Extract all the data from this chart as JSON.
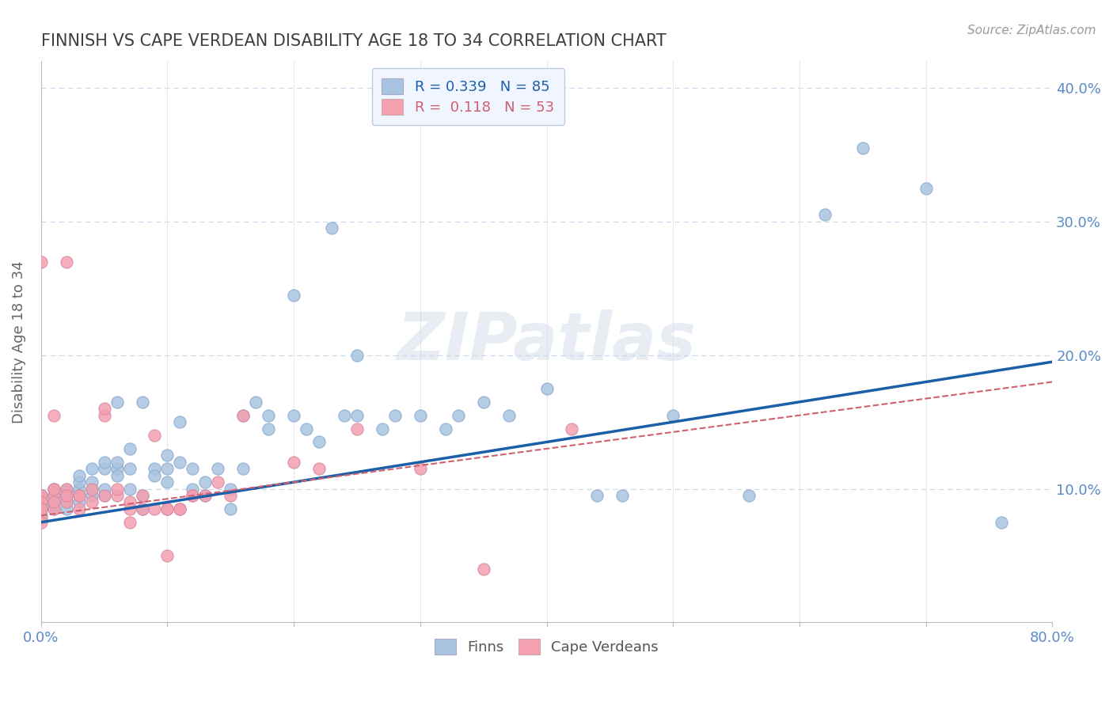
{
  "title": "FINNISH VS CAPE VERDEAN DISABILITY AGE 18 TO 34 CORRELATION CHART",
  "source": "Source: ZipAtlas.com",
  "xlabel": "",
  "ylabel": "Disability Age 18 to 34",
  "xlim": [
    0.0,
    0.8
  ],
  "ylim": [
    0.0,
    0.42
  ],
  "x_ticks": [
    0.0,
    0.1,
    0.2,
    0.3,
    0.4,
    0.5,
    0.6,
    0.7,
    0.8
  ],
  "y_ticks": [
    0.0,
    0.1,
    0.2,
    0.3,
    0.4
  ],
  "finns_R": 0.339,
  "finns_N": 85,
  "cape_R": 0.118,
  "cape_N": 53,
  "finns_color": "#a8c4e0",
  "cape_color": "#f4a0b0",
  "finns_line_color": "#1a5fa8",
  "cape_line_color": "#d06070",
  "watermark": "ZIPatlas",
  "background_color": "#ffffff",
  "grid_color": "#c8d8e8",
  "title_color": "#404040",
  "axis_label_color": "#5a8ac6",
  "legend_box_color": "#f0f5ff",
  "finns_line": [
    0.0,
    0.075,
    0.8,
    0.195
  ],
  "cape_line": [
    0.0,
    0.08,
    0.8,
    0.18
  ],
  "finns_data": [
    [
      0.0,
      0.095
    ],
    [
      0.0,
      0.085
    ],
    [
      0.0,
      0.09
    ],
    [
      0.0,
      0.08
    ],
    [
      0.0,
      0.09
    ],
    [
      0.0,
      0.095
    ],
    [
      0.0,
      0.088
    ],
    [
      0.01,
      0.09
    ],
    [
      0.01,
      0.085
    ],
    [
      0.01,
      0.092
    ],
    [
      0.01,
      0.1
    ],
    [
      0.01,
      0.095
    ],
    [
      0.01,
      0.088
    ],
    [
      0.02,
      0.095
    ],
    [
      0.02,
      0.1
    ],
    [
      0.02,
      0.085
    ],
    [
      0.02,
      0.09
    ],
    [
      0.02,
      0.098
    ],
    [
      0.02,
      0.095
    ],
    [
      0.03,
      0.1
    ],
    [
      0.03,
      0.105
    ],
    [
      0.03,
      0.095
    ],
    [
      0.03,
      0.09
    ],
    [
      0.03,
      0.11
    ],
    [
      0.04,
      0.115
    ],
    [
      0.04,
      0.1
    ],
    [
      0.04,
      0.095
    ],
    [
      0.04,
      0.105
    ],
    [
      0.05,
      0.115
    ],
    [
      0.05,
      0.12
    ],
    [
      0.05,
      0.095
    ],
    [
      0.05,
      0.1
    ],
    [
      0.06,
      0.115
    ],
    [
      0.06,
      0.12
    ],
    [
      0.06,
      0.165
    ],
    [
      0.06,
      0.11
    ],
    [
      0.07,
      0.13
    ],
    [
      0.07,
      0.1
    ],
    [
      0.07,
      0.115
    ],
    [
      0.08,
      0.165
    ],
    [
      0.08,
      0.085
    ],
    [
      0.08,
      0.095
    ],
    [
      0.09,
      0.115
    ],
    [
      0.09,
      0.11
    ],
    [
      0.1,
      0.125
    ],
    [
      0.1,
      0.115
    ],
    [
      0.1,
      0.105
    ],
    [
      0.11,
      0.12
    ],
    [
      0.11,
      0.15
    ],
    [
      0.12,
      0.115
    ],
    [
      0.12,
      0.1
    ],
    [
      0.13,
      0.095
    ],
    [
      0.13,
      0.105
    ],
    [
      0.14,
      0.115
    ],
    [
      0.15,
      0.085
    ],
    [
      0.15,
      0.1
    ],
    [
      0.16,
      0.115
    ],
    [
      0.16,
      0.155
    ],
    [
      0.17,
      0.165
    ],
    [
      0.18,
      0.155
    ],
    [
      0.18,
      0.145
    ],
    [
      0.2,
      0.245
    ],
    [
      0.2,
      0.155
    ],
    [
      0.21,
      0.145
    ],
    [
      0.22,
      0.135
    ],
    [
      0.23,
      0.295
    ],
    [
      0.24,
      0.155
    ],
    [
      0.25,
      0.2
    ],
    [
      0.25,
      0.155
    ],
    [
      0.27,
      0.145
    ],
    [
      0.28,
      0.155
    ],
    [
      0.3,
      0.155
    ],
    [
      0.32,
      0.145
    ],
    [
      0.33,
      0.155
    ],
    [
      0.35,
      0.165
    ],
    [
      0.37,
      0.155
    ],
    [
      0.4,
      0.175
    ],
    [
      0.44,
      0.095
    ],
    [
      0.46,
      0.095
    ],
    [
      0.5,
      0.155
    ],
    [
      0.56,
      0.095
    ],
    [
      0.62,
      0.305
    ],
    [
      0.65,
      0.355
    ],
    [
      0.7,
      0.325
    ],
    [
      0.76,
      0.075
    ]
  ],
  "cape_data": [
    [
      0.0,
      0.095
    ],
    [
      0.0,
      0.09
    ],
    [
      0.0,
      0.085
    ],
    [
      0.0,
      0.078
    ],
    [
      0.0,
      0.095
    ],
    [
      0.0,
      0.09
    ],
    [
      0.0,
      0.085
    ],
    [
      0.0,
      0.27
    ],
    [
      0.0,
      0.075
    ],
    [
      0.01,
      0.1
    ],
    [
      0.01,
      0.095
    ],
    [
      0.01,
      0.085
    ],
    [
      0.01,
      0.1
    ],
    [
      0.01,
      0.09
    ],
    [
      0.01,
      0.155
    ],
    [
      0.02,
      0.09
    ],
    [
      0.02,
      0.1
    ],
    [
      0.02,
      0.095
    ],
    [
      0.02,
      0.27
    ],
    [
      0.03,
      0.095
    ],
    [
      0.03,
      0.095
    ],
    [
      0.03,
      0.085
    ],
    [
      0.04,
      0.09
    ],
    [
      0.04,
      0.1
    ],
    [
      0.05,
      0.155
    ],
    [
      0.05,
      0.16
    ],
    [
      0.05,
      0.095
    ],
    [
      0.06,
      0.095
    ],
    [
      0.06,
      0.1
    ],
    [
      0.07,
      0.09
    ],
    [
      0.07,
      0.085
    ],
    [
      0.07,
      0.075
    ],
    [
      0.08,
      0.085
    ],
    [
      0.08,
      0.095
    ],
    [
      0.09,
      0.085
    ],
    [
      0.09,
      0.14
    ],
    [
      0.1,
      0.085
    ],
    [
      0.1,
      0.085
    ],
    [
      0.1,
      0.05
    ],
    [
      0.11,
      0.085
    ],
    [
      0.11,
      0.085
    ],
    [
      0.12,
      0.095
    ],
    [
      0.12,
      0.095
    ],
    [
      0.13,
      0.095
    ],
    [
      0.14,
      0.105
    ],
    [
      0.15,
      0.095
    ],
    [
      0.16,
      0.155
    ],
    [
      0.2,
      0.12
    ],
    [
      0.22,
      0.115
    ],
    [
      0.25,
      0.145
    ],
    [
      0.3,
      0.115
    ],
    [
      0.35,
      0.04
    ],
    [
      0.42,
      0.145
    ]
  ]
}
